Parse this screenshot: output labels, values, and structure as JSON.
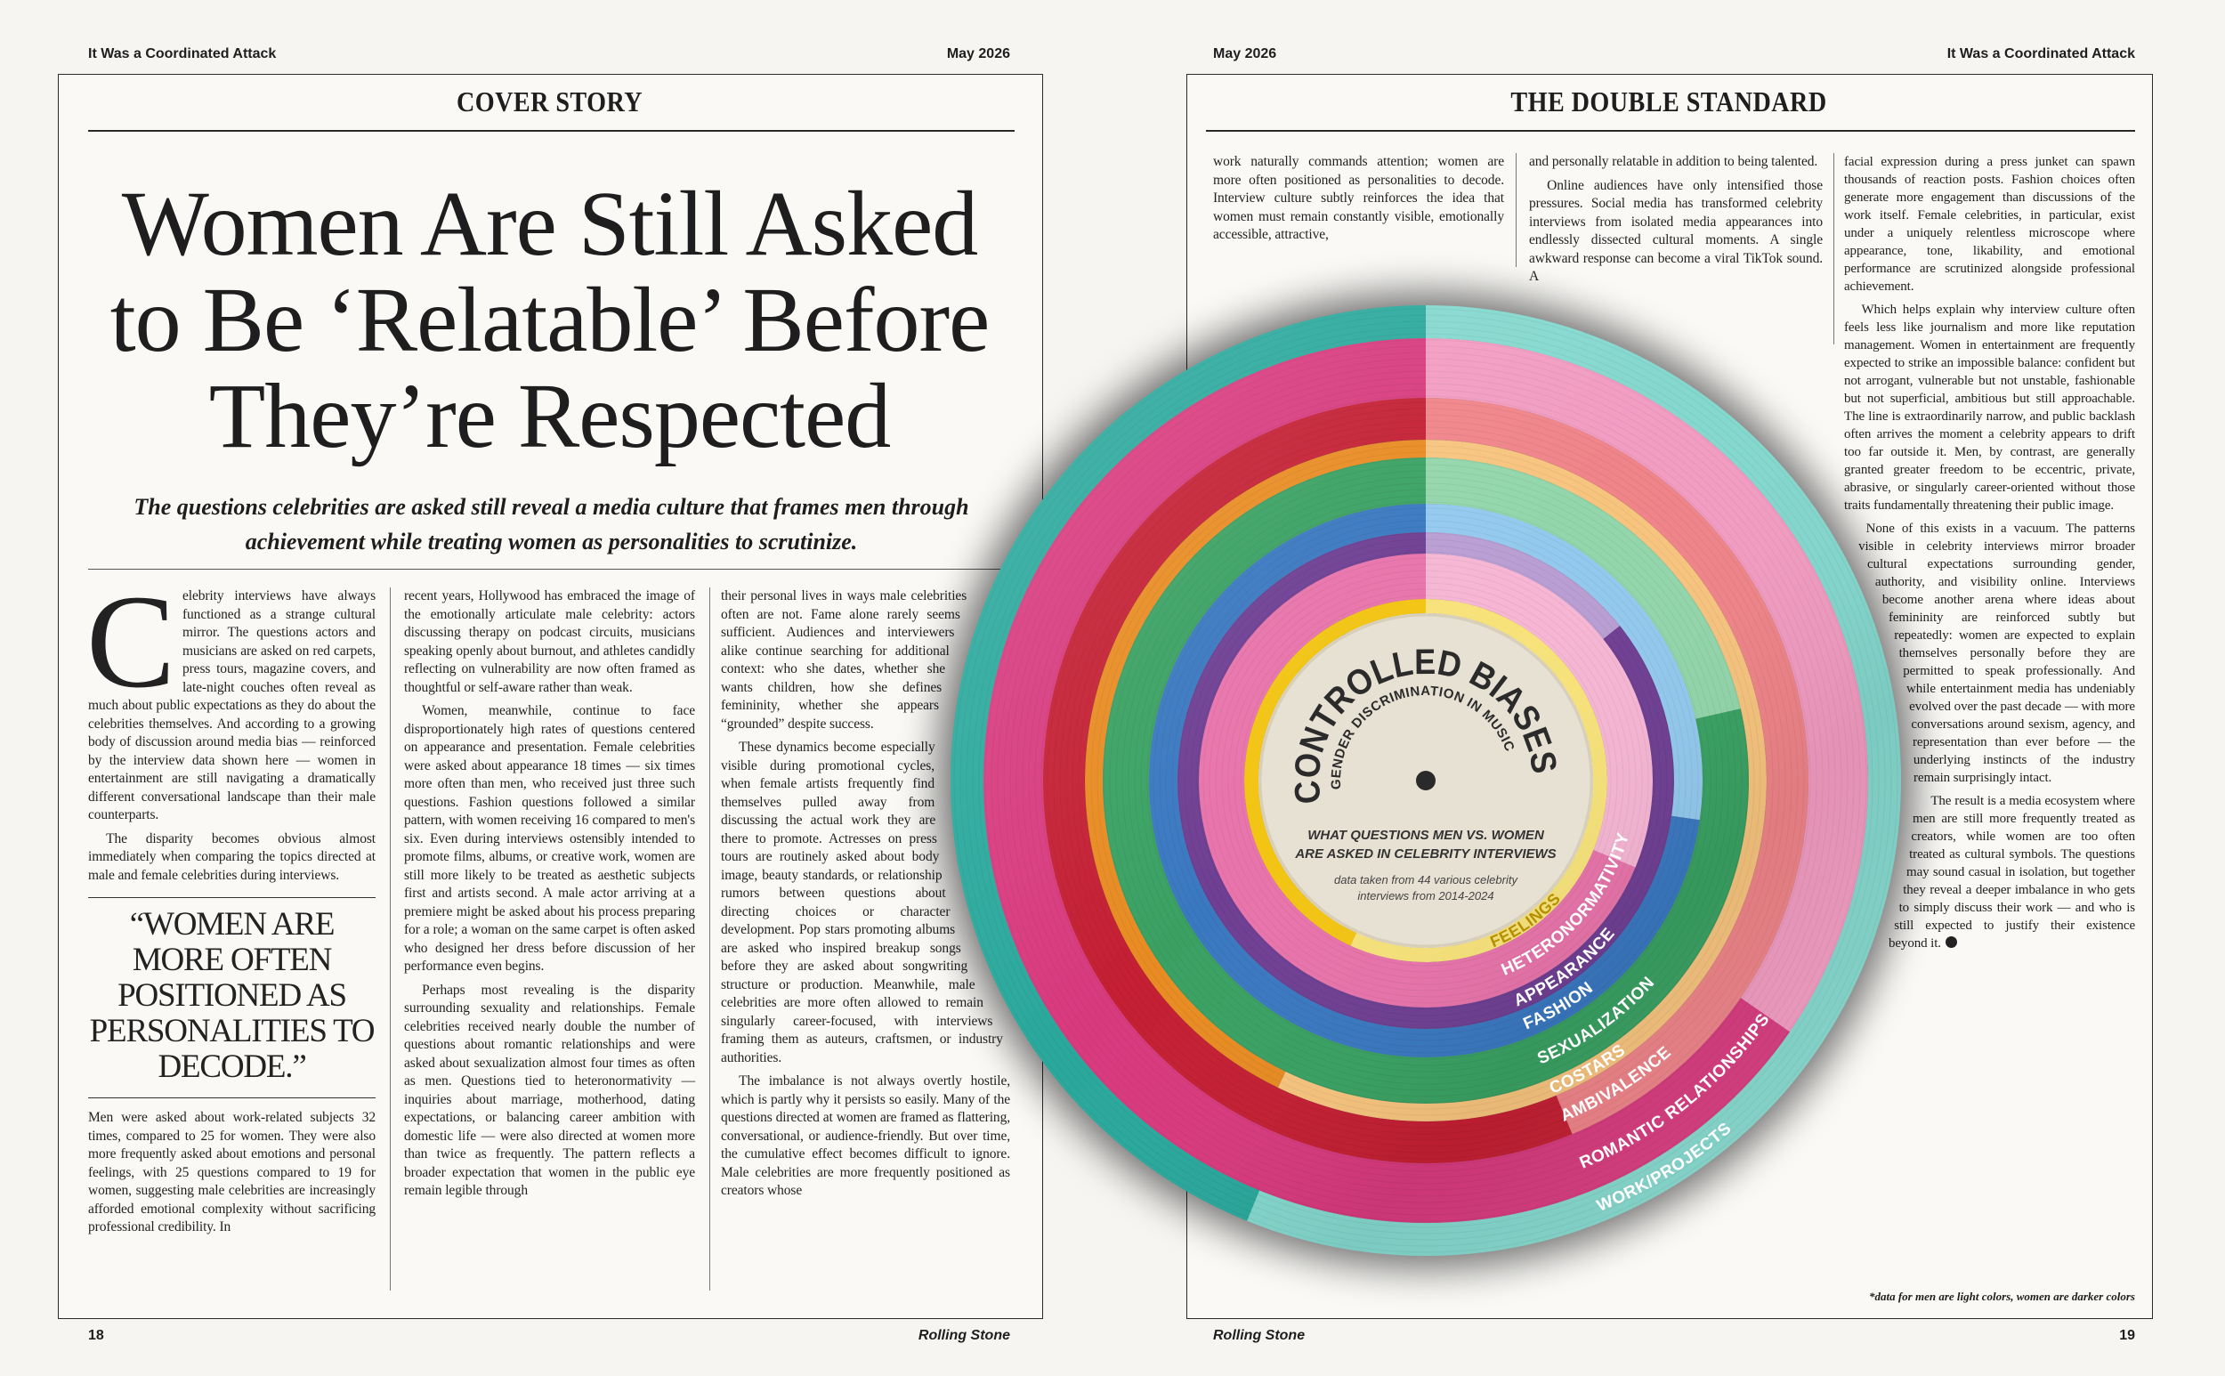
{
  "left_page": {
    "running_head": "It Was a Coordinated Attack",
    "date": "May 2026",
    "section": "COVER STORY",
    "title_lines": [
      "Women Are Still Asked",
      "to Be ‘Relatable’ Before",
      "They’re Respected"
    ],
    "dek": "The questions celebrities are asked still reveal a media culture that frames men through achievement while treating women as personalities to scrutinize.",
    "drop_cap": "C",
    "column_1": [
      "elebrity interviews have always functioned as a strange cultural mirror. The questions actors and musicians are asked on red carpets, press tours, magazine covers, and late-night couches often reveal as much about public expectations as they do about the celebrities themselves. And according to a growing body of discussion around media bias — reinforced by the interview data shown here — women in entertainment are still navigating a dramatically different conversational landscape than their male counterparts.",
      "The disparity becomes obvious almost immediately when comparing the topics directed at male and female celebrities during interviews."
    ],
    "pull_quote": "“WOMEN ARE MORE OFTEN POSITIONED AS PERSONALITIES TO DECODE.”",
    "column_1_end": [
      "Men were asked about work-related subjects 32 times, compared to 25 for women. They were also more frequently asked about emotions and personal feelings, with 25 questions compared to 19 for women, suggesting male celebrities are increasingly afforded emotional complexity without sacrificing professional credibility. In"
    ],
    "column_2": [
      "recent years, Hollywood has embraced the image of the emotionally articulate male celebrity: actors discussing therapy on podcast circuits, musicians speaking openly about burnout, and athletes candidly reflecting on vulnerability are now often framed as thoughtful or self-aware rather than weak.",
      "Women, meanwhile, continue to face disproportionately high rates of questions centered on appearance and presentation. Female celebrities were asked about appearance 18 times — six times more often than men, who received just three such questions. Fashion questions followed a similar pattern, with women receiving 16 compared to men's six. Even during interviews ostensibly intended to promote films, albums, or creative work, women are still more likely to be treated as aesthetic subjects first and artists second. A male actor arriving at a premiere might be asked about his process preparing for a role; a woman on the same carpet is often asked who designed her dress before discussion of her performance even begins.",
      "Perhaps most revealing is the disparity surrounding sexuality and relationships. Female celebrities received nearly double the number of questions about romantic relationships and were asked about sexualization almost four times as often as men. Questions tied to heteronormativity — inquiries about marriage, motherhood, dating expectations, or balancing career ambition with domestic life — were also directed at women more than twice as frequently. The pattern reflects a broader expectation that women in the public eye remain legible through"
    ],
    "column_3": [
      "their personal lives in ways male celebrities often are not. Fame alone rarely seems sufficient. Audiences and interviewers alike continue searching for additional context: who she dates, whether she wants children, how she defines femininity, whether she appears “grounded” despite success.",
      "These dynamics become especially visible during promotional cycles, when female artists frequently find themselves pulled away from discussing the actual work they are there to promote. Actresses on press tours are routinely asked about body image, beauty standards, or relationship rumors between questions about directing choices or character development. Pop stars promoting albums are asked who inspired breakup songs before they are asked about songwriting structure or production. Meanwhile, male celebrities are more often allowed to remain singularly career-focused, with interviews framing them as auteurs, craftsmen, or industry authorities.",
      "The imbalance is not always overtly hostile, which is partly why it persists so easily. Many of the questions directed at women are framed as flattering, conversational, or audience-friendly. But over time, the cumulative effect becomes difficult to ignore. Male celebrities are more frequently positioned as creators whose"
    ],
    "page_number": "18",
    "publication": "Rolling Stone"
  },
  "right_page": {
    "date": "May 2026",
    "running_head": "It Was a Coordinated Attack",
    "section": "THE DOUBLE STANDARD",
    "column_1": [
      "work naturally commands attention; women are more often positioned as personalities to decode. Interview culture subtly reinforces the idea that women must remain constantly visible, emotionally accessible, attractive,"
    ],
    "column_2": [
      "and personally relatable in addition to being talented.",
      "Online audiences have only intensified those pressures. Social media has transformed celebrity interviews from isolated media appearances into endlessly dissected cultural moments. A single awkward response can become a viral TikTok sound. A"
    ],
    "column_3": [
      "facial expression during a press junket can spawn thousands of reaction posts. Fashion choices often generate more engagement than discussions of the work itself. Female celebrities, in particular, exist under a uniquely relentless microscope where appearance, tone, likability, and emotional performance are scrutinized alongside professional achievement.",
      "Which helps explain why interview culture often feels less like journalism and more like reputation management. Women in entertainment are frequently expected to strike an impossible balance: confident but not arrogant, vulnerable but not unstable, fashionable but not superficial, ambitious but still approachable. The line is extraordinarily narrow, and public backlash often arrives the moment a celebrity appears to drift too far outside it. Men, by contrast, are generally granted greater freedom to be eccentric, private, abrasive, or singularly career-oriented without those traits fundamentally threatening their public image.",
      "None of this exists in a vacuum. The patterns visible in celebrity interviews mirror broader cultural expectations surrounding gender, authority, and visibility online. Interviews become another arena where ideas about femininity are reinforced subtly but repeatedly: women are expected to explain themselves personally before they are permitted to speak professionally. And while entertainment media has undeniably evolved over the past decade — with more conversations around sexism, agency, and representation than ever before — the underlying instincts of the industry remain surprisingly intact.",
      "The result is a media ecosystem where men are still more frequently treated as creators, while women are too often treated as cultural symbols. The questions may sound casual in isolation, but together they reveal a deeper imbalance in who gets to simply discuss their work — and who is still expected to justify their existence beyond it."
    ],
    "footnote": "*data for men are light colors, women are darker colors",
    "publication": "Rolling Stone",
    "page_number": "19"
  },
  "chart_data": {
    "type": "radial-rings",
    "title": "CONTROLLED BIASES",
    "subtitle": "GENDER DISCRIMINATION IN MUSIC",
    "caption": [
      "WHAT QUESTIONS MEN VS. WOMEN",
      "ARE ASKED IN CELEBRITY INTERVIEWS"
    ],
    "note": [
      "data taken from 44 various celebrity",
      "interviews from 2014-2024"
    ],
    "categories": [
      "FEELINGS",
      "HETERONORMATIVITY",
      "APPEARANCE",
      "FASHION",
      "SEXUALIZATION",
      "COSTARS",
      "AMBIVALENCE",
      "ROMANTIC RELATIONSHIPS",
      "WORK/PROJECTS"
    ],
    "series": [
      {
        "colors": [
          "#f7e27a",
          "#f6b6d4",
          "#b99ed3",
          "#93c9ee",
          "#93d6ab",
          "#f7c47e",
          "#ef8489",
          "#f29cc2",
          "#84d8ce"
        ],
        "values": [
          25,
          5,
          3,
          6,
          3,
          8,
          7,
          9,
          32
        ]
      },
      {
        "colors": [
          "#f2c413",
          "#e874ab",
          "#6f3f93",
          "#3a78c0",
          "#3aa163",
          "#e88b22",
          "#c41f33",
          "#d83a7e",
          "#2aa89c"
        ],
        "values": [
          19,
          11,
          18,
          16,
          11,
          6,
          9,
          17,
          25
        ]
      }
    ]
  }
}
